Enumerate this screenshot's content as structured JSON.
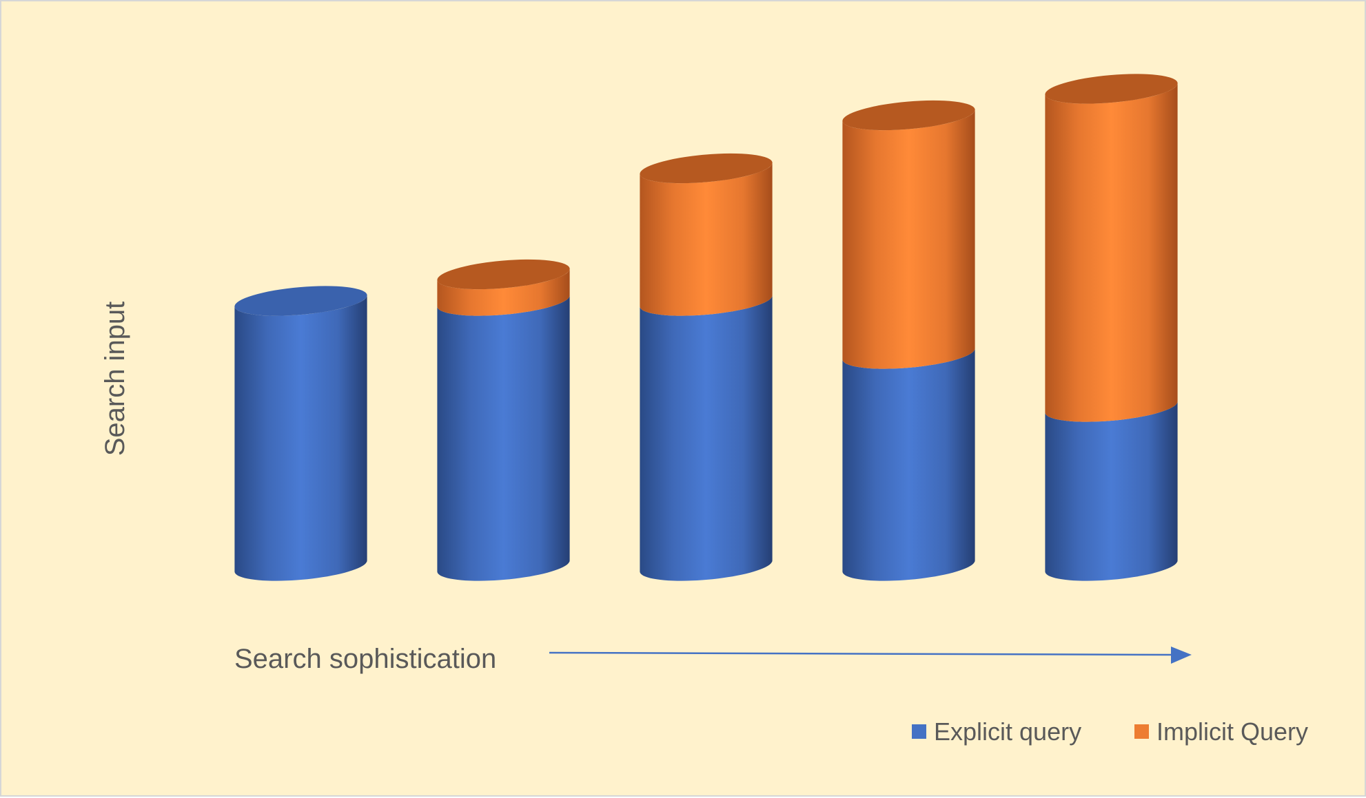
{
  "chart_data": {
    "type": "bar",
    "style": "3d-cylinder-stacked",
    "title": "",
    "xlabel": "Search sophistication",
    "ylabel": "Search input",
    "categories": [
      "",
      "",
      "",
      "",
      ""
    ],
    "series": [
      {
        "name": "Explicit query",
        "color": "#4472c4",
        "values": [
          100,
          100,
          100,
          80,
          60
        ]
      },
      {
        "name": "Implicit Query",
        "color": "#ed7d31",
        "values": [
          0,
          10,
          50,
          90,
          120
        ]
      }
    ],
    "ylim": [
      0,
      190
    ],
    "grid": false,
    "legend": "bottom-right",
    "arrow_color": "#4472c4"
  }
}
